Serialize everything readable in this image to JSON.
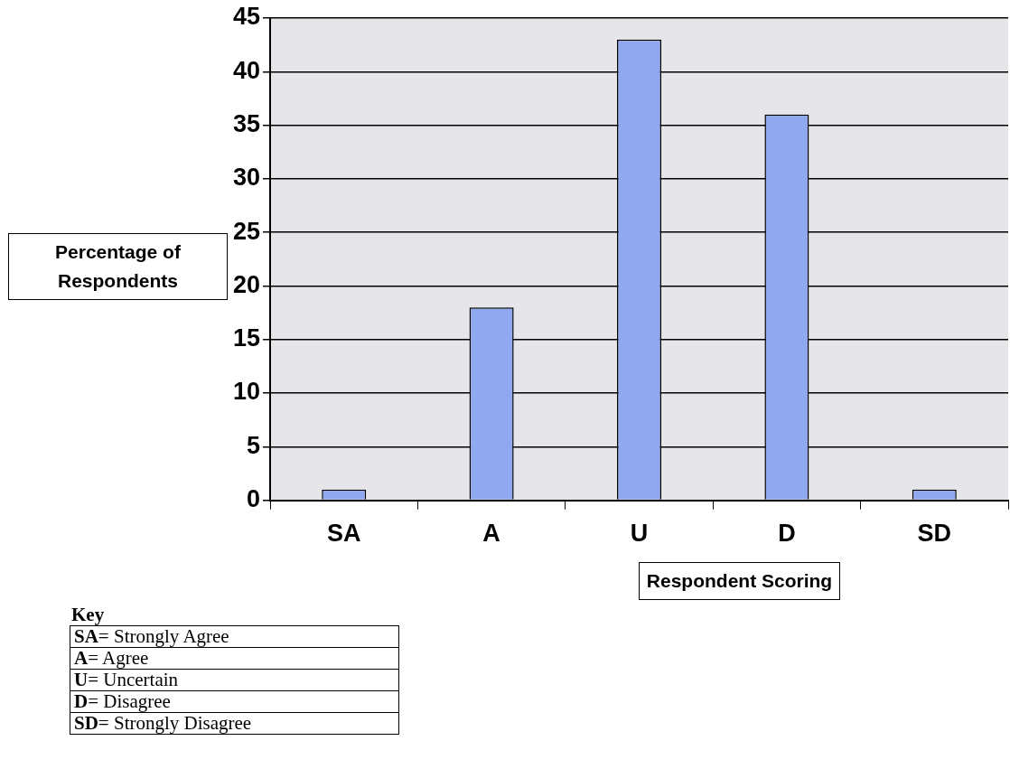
{
  "chart_data": {
    "type": "bar",
    "xlabel": "Respondent Scoring",
    "ylabel": "Percentage of Respondents",
    "categories": [
      "SA",
      "A",
      "U",
      "D",
      "SD"
    ],
    "values": [
      1,
      18,
      43,
      36,
      1
    ],
    "color": "#8fa8f0",
    "ylim": [
      0,
      45
    ],
    "yticks": [
      0,
      5,
      10,
      15,
      20,
      25,
      30,
      35,
      40,
      45
    ],
    "grid": "y",
    "annotations": [
      "Key",
      "SA= Strongly Agree",
      "A= Agree",
      "U= Uncertain",
      "D= Disagree",
      "SD= Strongly Disagree"
    ]
  }
}
